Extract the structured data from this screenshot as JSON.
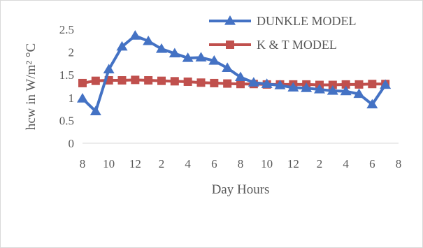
{
  "chart_data": {
    "type": "line",
    "xlabel": "Day Hours",
    "ylabel": "hcw in W/m² °C",
    "ylim": [
      0,
      2.5
    ],
    "yticks": [
      "0",
      "0.5",
      "1",
      "1.5",
      "2",
      "2.5"
    ],
    "x_tick_labels": [
      "8",
      "10",
      "12",
      "2",
      "4",
      "6",
      "8",
      "10",
      "12",
      "2",
      "4",
      "6",
      "8"
    ],
    "categories": [
      "8",
      "9",
      "10",
      "11",
      "12",
      "1",
      "2",
      "3",
      "4",
      "5",
      "6",
      "7",
      "8",
      "9",
      "10",
      "11",
      "12",
      "1",
      "2",
      "3",
      "4",
      "5",
      "6",
      "7"
    ],
    "grid": false,
    "legend_position": "top-right",
    "series": [
      {
        "name": "DUNKLE MODEL",
        "color": "#4472c4",
        "marker": "triangle",
        "values": [
          0.98,
          0.7,
          1.62,
          2.12,
          2.36,
          2.24,
          2.07,
          1.97,
          1.87,
          1.88,
          1.81,
          1.65,
          1.45,
          1.33,
          1.3,
          1.27,
          1.22,
          1.21,
          1.18,
          1.15,
          1.14,
          1.08,
          0.85,
          1.28
        ]
      },
      {
        "name": "K & T MODEL",
        "color": "#c0504d",
        "marker": "square",
        "values": [
          1.32,
          1.37,
          1.38,
          1.38,
          1.39,
          1.38,
          1.37,
          1.36,
          1.35,
          1.33,
          1.32,
          1.31,
          1.3,
          1.3,
          1.29,
          1.29,
          1.29,
          1.29,
          1.28,
          1.28,
          1.29,
          1.29,
          1.3,
          1.3
        ]
      }
    ]
  }
}
